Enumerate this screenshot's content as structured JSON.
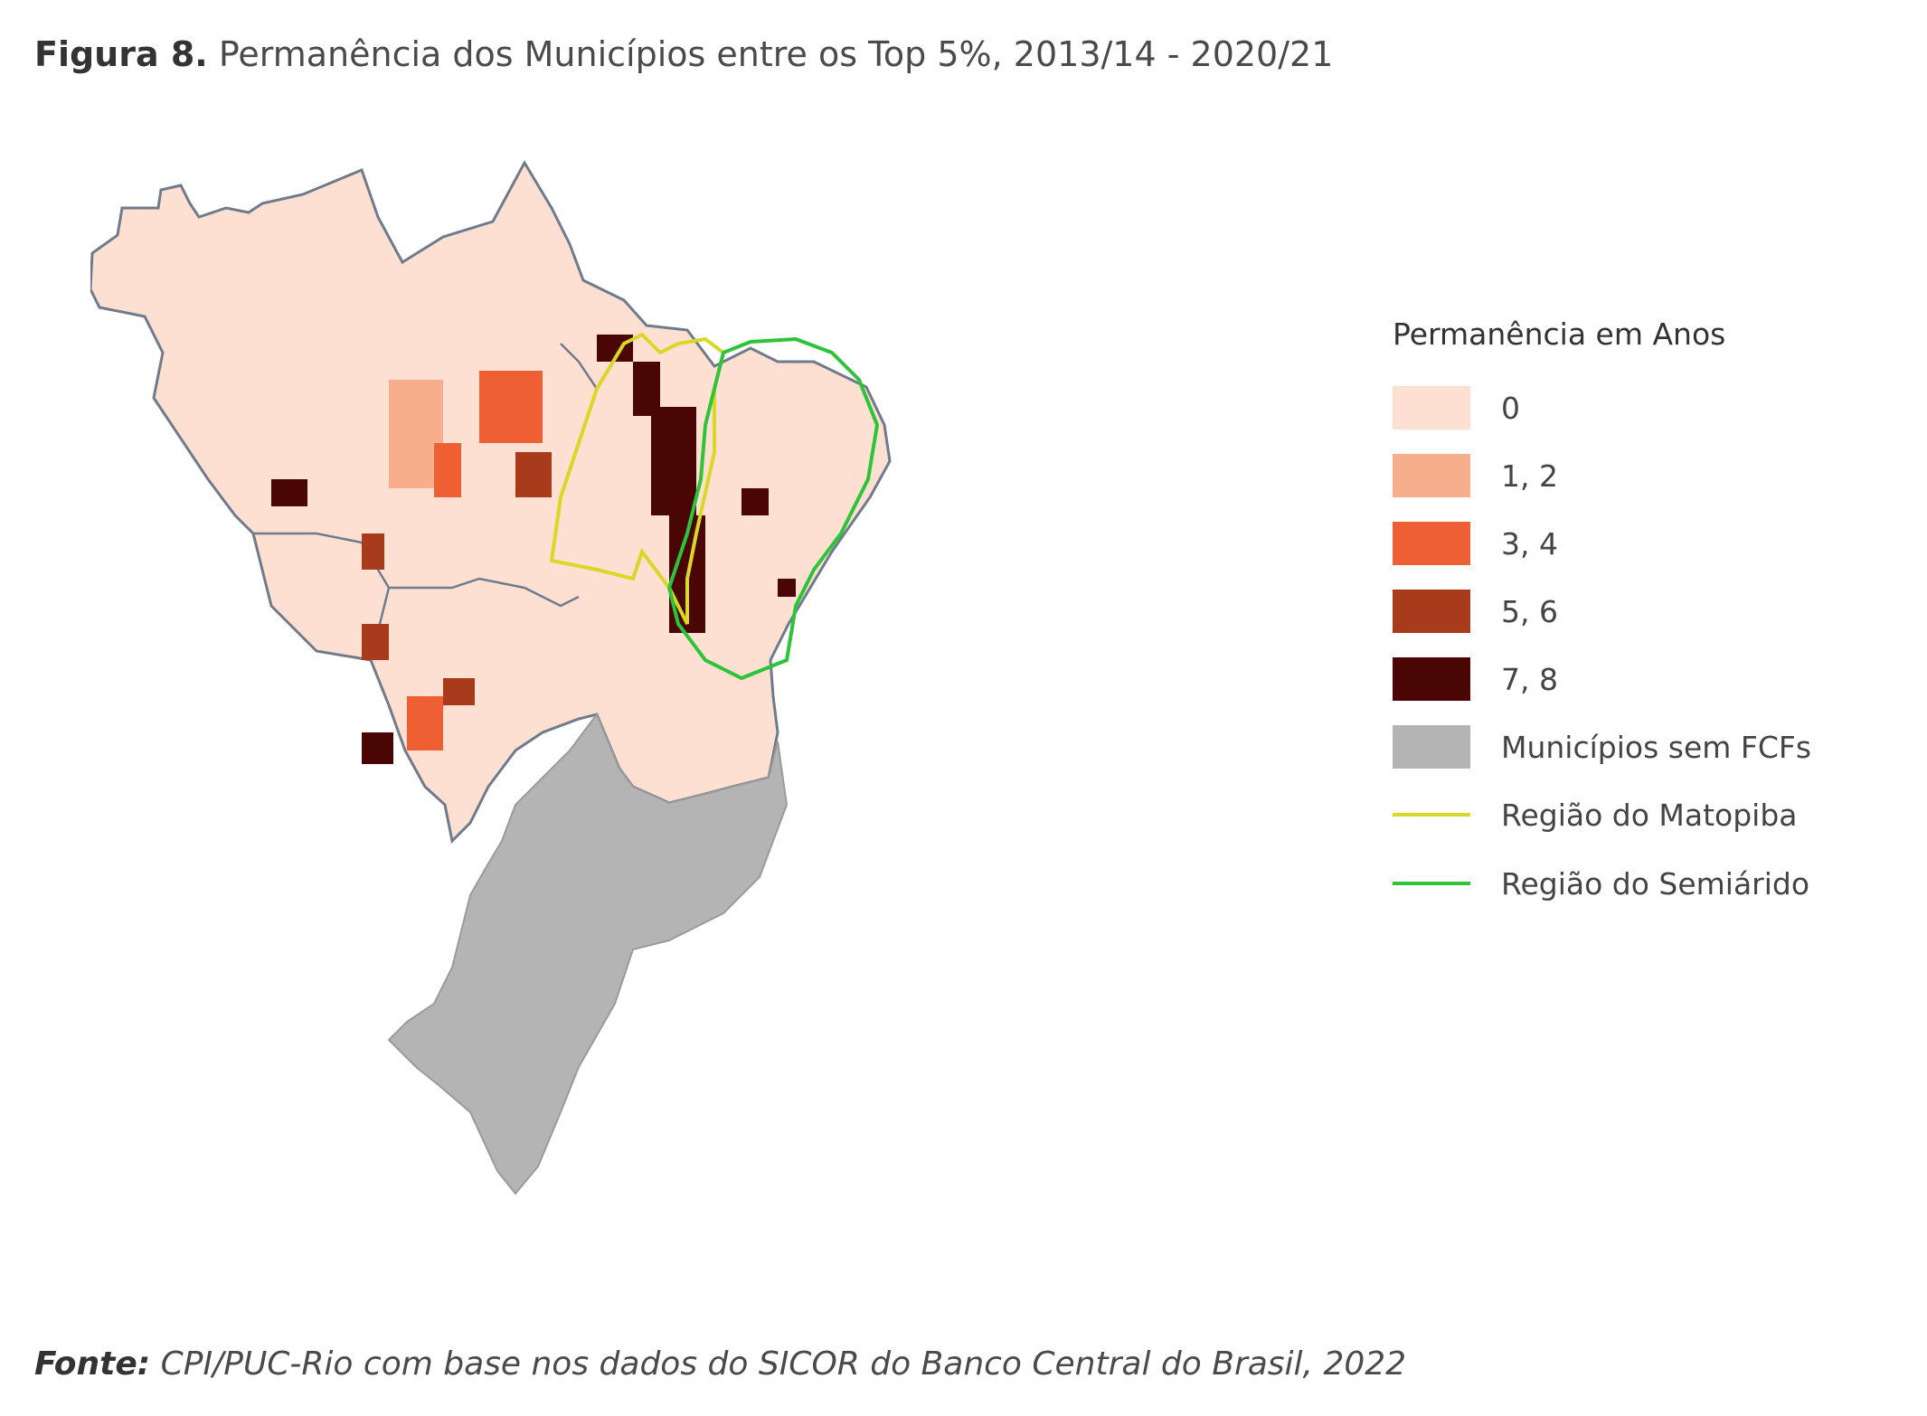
{
  "figure": {
    "label": "Figura 8.",
    "title": "Permanência dos Municípios entre os Top 5%, 2013/14 - 2020/21"
  },
  "source": {
    "label": "Fonte:",
    "text": "CPI/PUC-Rio com base nos dados do SICOR do Banco Central do Brasil, 2022"
  },
  "legend": {
    "title": "Permanência em Anos",
    "classes": [
      {
        "label": "0",
        "color": "#fde0d2"
      },
      {
        "label": "1, 2",
        "color": "#f7ae8c"
      },
      {
        "label": "3, 4",
        "color": "#ef5f34"
      },
      {
        "label": "5, 6",
        "color": "#a83b1c"
      },
      {
        "label": "7, 8",
        "color": "#4a0505"
      },
      {
        "label": "Municípios sem FCFs",
        "color": "#b4b4b4"
      }
    ],
    "lines": [
      {
        "label": "Região do Matopiba",
        "color": "#d9d826"
      },
      {
        "label": "Região do Semiárido",
        "color": "#2dc43a"
      }
    ]
  },
  "map": {
    "border_color": "#6f7b8c"
  }
}
